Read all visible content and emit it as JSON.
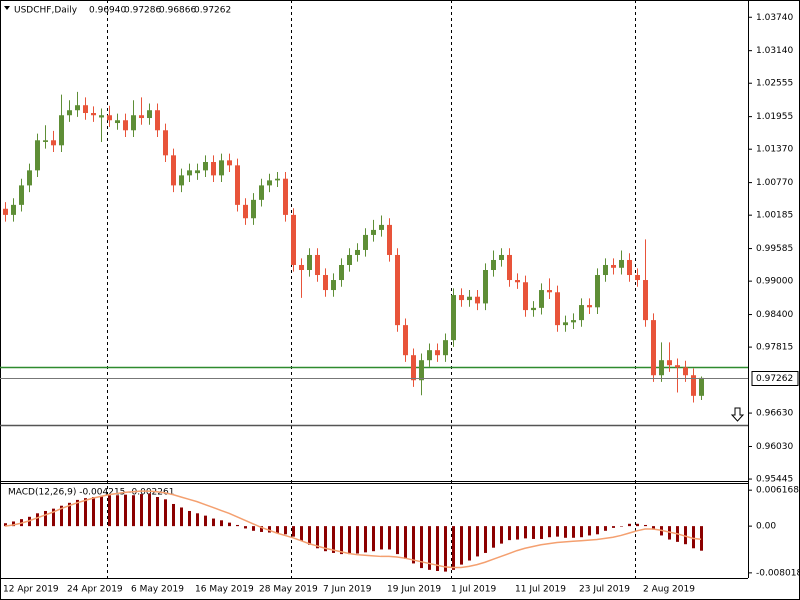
{
  "chart_data": [
    {
      "type": "candlestick",
      "title": "USDCHF,Daily",
      "info": [
        "0.96940",
        "0.97286",
        "0.96866",
        "0.97262"
      ],
      "price_label": "0.97262",
      "up_color": "#5e8e36",
      "down_color": "#e8543a",
      "ylim": [
        0.9541,
        1.0405
      ],
      "yticks": [
        {
          "value": 1.0374,
          "label": "1.03740"
        },
        {
          "value": 1.0314,
          "label": "1.03140"
        },
        {
          "value": 1.02555,
          "label": "1.02555"
        },
        {
          "value": 1.01955,
          "label": "1.01955"
        },
        {
          "value": 1.0137,
          "label": "1.01370"
        },
        {
          "value": 1.0077,
          "label": "1.00770"
        },
        {
          "value": 1.00185,
          "label": "1.00185"
        },
        {
          "value": 0.99585,
          "label": "0.99585"
        },
        {
          "value": 0.99,
          "label": "0.99000"
        },
        {
          "value": 0.984,
          "label": "0.98400"
        },
        {
          "value": 0.97815,
          "label": "0.97815"
        },
        {
          "value": 0.9663,
          "label": "0.96630"
        },
        {
          "value": 0.9603,
          "label": "0.96030"
        },
        {
          "value": 0.95445,
          "label": "0.95445"
        }
      ],
      "levels": [
        {
          "value": 0.9746,
          "color": "#2e8b2e"
        },
        {
          "value": 0.9642,
          "color": "#555555"
        }
      ],
      "categories": [
        "12 Apr 2019",
        null,
        null,
        null,
        null,
        null,
        null,
        null,
        "24 Apr 2019",
        null,
        null,
        null,
        null,
        null,
        null,
        null,
        "6 May 2019",
        null,
        null,
        null,
        null,
        null,
        null,
        null,
        "16 May 2019",
        null,
        null,
        null,
        null,
        null,
        null,
        null,
        "28 May 2019",
        null,
        null,
        null,
        null,
        null,
        null,
        null,
        "7 Jun 2019",
        null,
        null,
        null,
        null,
        null,
        null,
        null,
        "19 Jun 2019",
        null,
        null,
        null,
        null,
        null,
        null,
        null,
        "1 Jul 2019",
        null,
        null,
        null,
        null,
        null,
        null,
        null,
        "11 Jul 2019",
        null,
        null,
        null,
        null,
        null,
        null,
        null,
        "23 Jul 2019",
        null,
        null,
        null,
        null,
        null,
        null,
        null,
        "2 Aug 2019",
        null,
        null,
        null,
        null,
        null,
        null,
        null
      ],
      "open": [
        1.003,
        1.0019,
        1.0037,
        1.0072,
        1.0099,
        1.015,
        1.0153,
        1.0144,
        1.0198,
        1.0207,
        1.0216,
        1.0202,
        1.0194,
        1.0198,
        1.0184,
        1.0189,
        1.0171,
        1.0198,
        1.0193,
        1.0207,
        1.0171,
        1.0126,
        1.0072,
        1.009,
        1.0094,
        1.0099,
        1.0114,
        1.009,
        1.0117,
        1.0108,
        1.0037,
        1.0013,
        1.0046,
        1.0072,
        1.0081,
        1.0084,
        1.0019,
        0.9929,
        0.992,
        0.9947,
        0.9911,
        0.9884,
        0.9902,
        0.9929,
        0.9947,
        0.9956,
        0.9983,
        0.9992,
        1.0001,
        0.9947,
        0.9821,
        0.9767,
        0.9722,
        0.9758,
        0.9776,
        0.9767,
        0.9794,
        0.9875,
        0.9866,
        0.9872,
        0.986,
        0.992,
        0.9938,
        0.9947,
        0.9902,
        0.9898,
        0.9848,
        0.9852,
        0.9884,
        0.988,
        0.9821,
        0.9826,
        0.983,
        0.9857,
        0.9853,
        0.9911,
        0.9929,
        0.9924,
        0.9938,
        0.9911,
        0.9902,
        0.983,
        0.9731,
        0.9758,
        0.9749,
        0.9745,
        0.9731,
        0.9694
      ],
      "high": [
        1.0042,
        1.0049,
        1.0084,
        1.0111,
        1.0165,
        1.018,
        1.017,
        1.0235,
        1.0225,
        1.024,
        1.023,
        1.0214,
        1.021,
        1.0215,
        1.0201,
        1.0201,
        1.0225,
        1.023,
        1.0219,
        1.0219,
        1.0183,
        1.0138,
        1.0102,
        1.0111,
        1.0111,
        1.0126,
        1.0126,
        1.0129,
        1.0129,
        1.012,
        1.0049,
        1.0058,
        1.0084,
        1.0093,
        1.0096,
        1.0096,
        1.0031,
        0.9941,
        0.9959,
        0.9959,
        0.9923,
        0.9914,
        0.9941,
        0.9959,
        0.9968,
        0.9995,
        1.001,
        1.0018,
        1.0013,
        0.9959,
        0.9833,
        0.9779,
        0.977,
        0.9788,
        0.9788,
        0.9806,
        0.9887,
        0.9887,
        0.9884,
        0.9884,
        0.9932,
        0.9955,
        0.9959,
        0.9959,
        0.9914,
        0.991,
        0.9864,
        0.9896,
        0.9905,
        0.9892,
        0.9838,
        0.9842,
        0.9869,
        0.9869,
        0.9923,
        0.9941,
        0.9941,
        0.9955,
        0.995,
        0.9923,
        0.9975,
        0.9842,
        0.979,
        0.979,
        0.9761,
        0.9757,
        0.9743,
        0.97286
      ],
      "low": [
        1.0007,
        1.0007,
        1.0025,
        1.006,
        1.0087,
        1.0138,
        1.0132,
        1.0132,
        1.0186,
        1.0195,
        1.019,
        1.0186,
        1.015,
        1.0177,
        1.0172,
        1.0159,
        1.0159,
        1.0181,
        1.0181,
        1.0159,
        1.0114,
        1.006,
        1.006,
        1.0078,
        1.0082,
        1.0087,
        1.0078,
        1.0078,
        1.0096,
        1.0025,
        1.0001,
        1.0001,
        1.0034,
        1.006,
        1.0069,
        1.0007,
        0.9917,
        0.987,
        0.9908,
        0.9899,
        0.9872,
        0.9872,
        0.989,
        0.9917,
        0.9935,
        0.9944,
        0.9971,
        0.998,
        0.9935,
        0.9809,
        0.9755,
        0.971,
        0.9695,
        0.9746,
        0.9755,
        0.9755,
        0.9782,
        0.9854,
        0.9854,
        0.9848,
        0.9848,
        0.9908,
        0.9926,
        0.989,
        0.9886,
        0.9836,
        0.9836,
        0.984,
        0.9868,
        0.9809,
        0.9809,
        0.9814,
        0.9818,
        0.9841,
        0.9841,
        0.9899,
        0.9912,
        0.9912,
        0.9899,
        0.989,
        0.9818,
        0.9719,
        0.9719,
        0.9737,
        0.97,
        0.9719,
        0.9682,
        0.96866
      ],
      "close": [
        1.0019,
        1.0037,
        1.0072,
        1.0099,
        1.0153,
        1.0153,
        1.0144,
        1.0198,
        1.0207,
        1.0216,
        1.0202,
        1.0198,
        1.0198,
        1.0189,
        1.0189,
        1.0171,
        1.0198,
        1.0193,
        1.0207,
        1.0171,
        1.0126,
        1.0072,
        1.009,
        1.0099,
        1.0099,
        1.0114,
        1.009,
        1.0117,
        1.0108,
        1.0037,
        1.0013,
        1.0046,
        1.0072,
        1.0081,
        1.0084,
        1.0019,
        0.9929,
        0.992,
        0.9947,
        0.9911,
        0.9884,
        0.9902,
        0.9929,
        0.9947,
        0.9956,
        0.9983,
        0.9992,
        1.0001,
        0.9947,
        0.9821,
        0.9767,
        0.9722,
        0.9758,
        0.9776,
        0.9767,
        0.9794,
        0.9875,
        0.9866,
        0.9872,
        0.986,
        0.992,
        0.9938,
        0.9947,
        0.9902,
        0.9898,
        0.9848,
        0.9852,
        0.9884,
        0.988,
        0.9821,
        0.9826,
        0.983,
        0.9857,
        0.9853,
        0.9911,
        0.9929,
        0.9924,
        0.9938,
        0.9911,
        0.9902,
        0.983,
        0.9731,
        0.9758,
        0.9749,
        0.9745,
        0.9731,
        0.9694,
        0.97262
      ]
    },
    {
      "type": "macd",
      "title": "MACD(12,26,9) -0.004215 -0.002261",
      "ylim": [
        -0.0089,
        0.0074
      ],
      "yticks": [
        0.006168,
        {
          "value": 0,
          "label": "0.00"
        },
        -0.008018
      ],
      "series": [
        {
          "color": "#8b0000",
          "values": [
            0.0005,
            0.0008,
            0.0012,
            0.0016,
            0.0022,
            0.0026,
            0.003,
            0.0035,
            0.004,
            0.0045,
            0.0048,
            0.005,
            0.0052,
            0.0053,
            0.0053,
            0.0054,
            0.0053,
            0.0055,
            0.0056,
            0.005,
            0.0046,
            0.0038,
            0.0032,
            0.0026,
            0.0022,
            0.0018,
            0.0013,
            0.001,
            0.0006,
            0.0002,
            -0.0004,
            -0.0008,
            -0.001,
            -0.0011,
            -0.0012,
            -0.0014,
            -0.0018,
            -0.0025,
            -0.0032,
            -0.0038,
            -0.0043,
            -0.0046,
            -0.0048,
            -0.0048,
            -0.0047,
            -0.0045,
            -0.0043,
            -0.004,
            -0.004,
            -0.0048,
            -0.0056,
            -0.0064,
            -0.0072,
            -0.0075,
            -0.0077,
            -0.0078,
            -0.0075,
            -0.0066,
            -0.0059,
            -0.0052,
            -0.0046,
            -0.0037,
            -0.003,
            -0.0024,
            -0.0023,
            -0.0021,
            -0.0022,
            -0.0022,
            -0.0019,
            -0.0018,
            -0.002,
            -0.002,
            -0.0019,
            -0.0016,
            -0.0014,
            -0.0008,
            -0.0003,
            0,
            0.0004,
            0.0004,
            0.0002,
            -0.0006,
            -0.0016,
            -0.0023,
            -0.0027,
            -0.0031,
            -0.0038,
            -0.004215
          ]
        },
        {
          "color": "#f4a070",
          "values": [
            0,
            0.0002,
            0.0005,
            0.0009,
            0.0014,
            0.0019,
            0.0024,
            0.003,
            0.0035,
            0.004,
            0.0044,
            0.0048,
            0.0051,
            0.0054,
            0.0056,
            0.0058,
            0.0059,
            0.006,
            0.006,
            0.0059,
            0.0057,
            0.0054,
            0.005,
            0.0046,
            0.0042,
            0.0037,
            0.0032,
            0.0027,
            0.0022,
            0.0016,
            0.001,
            0.0004,
            -0.0002,
            -0.0007,
            -0.0012,
            -0.0016,
            -0.002,
            -0.0025,
            -0.003,
            -0.0034,
            -0.0038,
            -0.0041,
            -0.0044,
            -0.0047,
            -0.0049,
            -0.005,
            -0.0051,
            -0.0052,
            -0.0052,
            -0.0053,
            -0.0055,
            -0.0058,
            -0.0061,
            -0.0064,
            -0.0067,
            -0.007,
            -0.0071,
            -0.0071,
            -0.0069,
            -0.0066,
            -0.0062,
            -0.0057,
            -0.0052,
            -0.0047,
            -0.0042,
            -0.0038,
            -0.0035,
            -0.0032,
            -0.003,
            -0.0028,
            -0.0027,
            -0.0026,
            -0.0025,
            -0.0024,
            -0.0023,
            -0.0021,
            -0.0019,
            -0.0016,
            -0.0012,
            -0.0008,
            -0.0005,
            -0.0005,
            -0.0007,
            -0.001,
            -0.0013,
            -0.0017,
            -0.0021,
            -0.002261
          ]
        }
      ]
    }
  ]
}
